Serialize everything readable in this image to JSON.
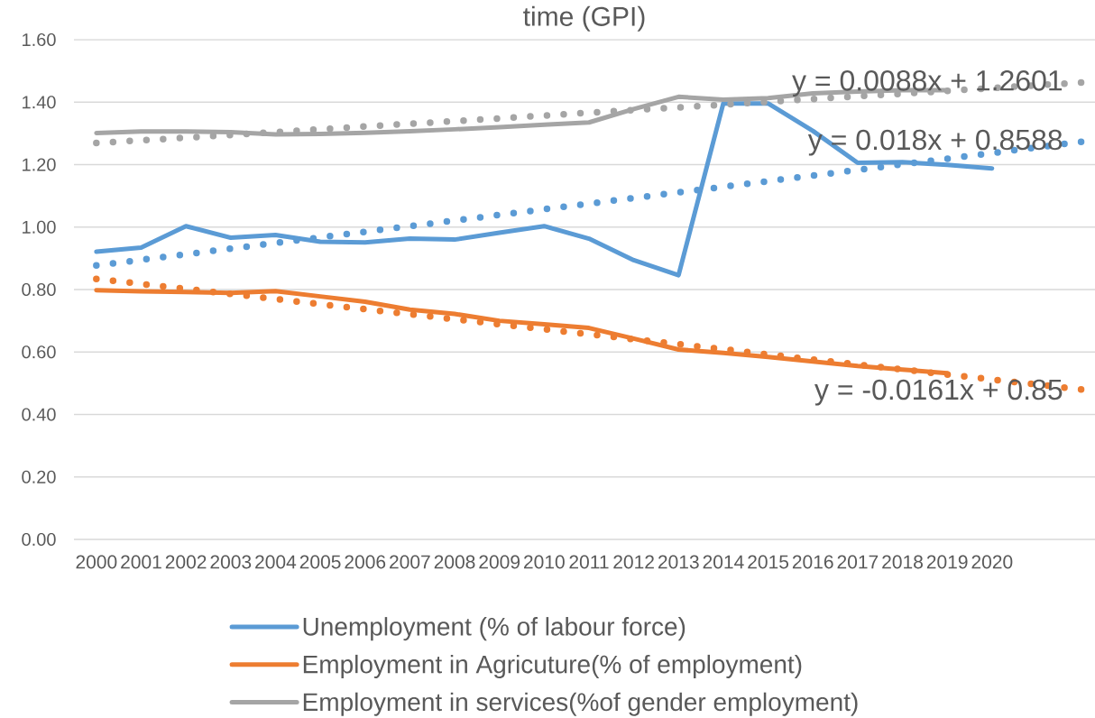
{
  "chart_data": {
    "type": "line",
    "title": "time (GPI)",
    "categories": [
      "2000",
      "2001",
      "2002",
      "2003",
      "2004",
      "2005",
      "2006",
      "2007",
      "2008",
      "2009",
      "2010",
      "2011",
      "2012",
      "2013",
      "2014",
      "2015",
      "2016",
      "2017",
      "2018",
      "2019",
      "2020",
      null,
      null
    ],
    "series": [
      {
        "name": "Unemployment (% of labour force)",
        "color": "#5b9bd5",
        "line_style": "solid",
        "values": [
          0.921,
          0.934,
          1.003,
          0.966,
          0.975,
          0.953,
          0.951,
          0.963,
          0.96,
          0.982,
          1.003,
          0.963,
          0.894,
          0.846,
          1.396,
          1.396,
          1.308,
          1.206,
          1.208,
          1.199,
          1.188,
          null,
          null
        ]
      },
      {
        "name": "Employment in Agricuture(% of employment)",
        "color": "#ed7d31",
        "line_style": "solid",
        "values": [
          0.798,
          0.794,
          0.792,
          0.789,
          0.795,
          0.778,
          0.761,
          0.736,
          0.722,
          0.7,
          0.689,
          0.677,
          0.643,
          0.608,
          0.597,
          0.584,
          0.57,
          0.555,
          0.544,
          0.532,
          null,
          null,
          null
        ]
      },
      {
        "name": "Employment in services(%of gender employment)",
        "color": "#a5a5a5",
        "line_style": "solid",
        "values": [
          1.301,
          1.306,
          1.306,
          1.304,
          1.297,
          1.298,
          1.302,
          1.307,
          1.313,
          1.32,
          1.328,
          1.335,
          1.378,
          1.417,
          1.408,
          1.413,
          1.428,
          1.434,
          1.438,
          1.438,
          null,
          null,
          null
        ]
      },
      {
        "color": "#5b9bd5",
        "line_style": "dotted",
        "values": [
          0.877,
          0.895,
          0.913,
          0.931,
          0.949,
          0.967,
          0.985,
          1.003,
          1.021,
          1.039,
          1.057,
          1.075,
          1.093,
          1.111,
          1.129,
          1.147,
          1.165,
          1.183,
          1.201,
          1.219,
          1.237,
          1.255,
          1.273
        ]
      },
      {
        "color": "#ed7d31",
        "line_style": "dotted",
        "values": [
          0.834,
          0.818,
          0.802,
          0.786,
          0.77,
          0.753,
          0.737,
          0.721,
          0.705,
          0.689,
          0.673,
          0.657,
          0.641,
          0.625,
          0.609,
          0.592,
          0.576,
          0.56,
          0.544,
          0.528,
          0.512,
          0.496,
          0.48
        ]
      },
      {
        "color": "#a5a5a5",
        "line_style": "dotted",
        "values": [
          1.269,
          1.278,
          1.286,
          1.295,
          1.304,
          1.313,
          1.322,
          1.331,
          1.339,
          1.348,
          1.357,
          1.366,
          1.375,
          1.383,
          1.392,
          1.401,
          1.41,
          1.419,
          1.427,
          1.436,
          1.445,
          1.454,
          1.463
        ]
      }
    ],
    "ylim": [
      0,
      1.6
    ],
    "yticks": [
      {
        "value": 0,
        "label": "0.00"
      },
      {
        "value": 0.2,
        "label": "0.20"
      },
      {
        "value": 0.4,
        "label": "0.40"
      },
      {
        "value": 0.6,
        "label": "0.60"
      },
      {
        "value": 0.8,
        "label": "0.80"
      },
      {
        "value": 1.0,
        "label": "1.00"
      },
      {
        "value": 1.2,
        "label": "1.20"
      },
      {
        "value": 1.4,
        "label": "1.40"
      },
      {
        "value": 1.6,
        "label": "1.60"
      }
    ],
    "grid": "y",
    "legend": "bottom",
    "marker": "none",
    "annotations": [
      "y = 0.0088x + 1.2601",
      "y = 0.018x + 0.8588",
      "y = -0.0161x + 0.85"
    ]
  }
}
